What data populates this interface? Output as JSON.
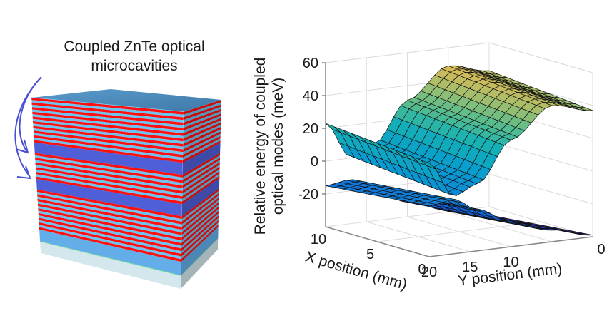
{
  "schematic": {
    "label_line1": "Coupled ZnTe optical",
    "label_line2": "microcavities",
    "colors": {
      "arrow": "#4a4fd6",
      "top_face": "#4a86b8",
      "dbr_light": "#6ec3f0",
      "dbr_red": "#ff1010",
      "cavity": "#4f5fd8",
      "buffer": "#63aee8",
      "substrate": "#d4e7ec",
      "interface": "#6ee08a"
    },
    "stack_from_top": [
      {
        "type": "dbr",
        "pairs": 9
      },
      {
        "type": "cavity"
      },
      {
        "type": "dbr",
        "pairs": 5
      },
      {
        "type": "cavity"
      },
      {
        "type": "dbr",
        "pairs": 8
      },
      {
        "type": "buffer"
      },
      {
        "type": "substrate"
      }
    ]
  },
  "chart_data": {
    "type": "surface3d",
    "title": "",
    "zlabel_line1": "Relative energy of coupled",
    "zlabel_line2": "optical modes (meV)",
    "xlabel": "X position (mm)",
    "ylabel": "Y position (mm)",
    "xlim": [
      0,
      10
    ],
    "ylim": [
      0,
      20
    ],
    "zlim": [
      -40,
      60
    ],
    "x_ticks": [
      {
        "v": 10,
        "label": "10"
      },
      {
        "v": 5,
        "label": "5"
      },
      {
        "v": 0,
        "label": "0"
      }
    ],
    "y_ticks": [
      {
        "v": 20,
        "label": "20"
      },
      {
        "v": 15,
        "label": "15"
      },
      {
        "v": 10,
        "label": "10"
      },
      {
        "v": 0,
        "label": "0"
      }
    ],
    "z_ticks": [
      {
        "v": 60,
        "label": "60"
      },
      {
        "v": 40,
        "label": "40"
      },
      {
        "v": 20,
        "label": "20"
      },
      {
        "v": 0,
        "label": "0"
      },
      {
        "v": -20,
        "label": "-20"
      }
    ],
    "grid": true,
    "colormap": "parula",
    "series": [
      {
        "name": "upper mode",
        "description": "saddle-like: ~20 meV at X=10,Y=20 corner, minimum ~ -5 meV near Y≈15, rising to ~45 meV at Y≈5, ~40 meV at Y=0",
        "y_profile": [
          {
            "y": 0,
            "z": 40
          },
          {
            "y": 5,
            "z": 46
          },
          {
            "y": 10,
            "z": 28
          },
          {
            "y": 14,
            "z": 4
          },
          {
            "y": 17,
            "z": -2
          },
          {
            "y": 20,
            "z": 20
          }
        ],
        "x_tilt": 3
      },
      {
        "name": "lower mode",
        "description": "~ -12 meV at Y=20, peak ~ -10 near Y≈17, falling to ~ -40 meV toward Y=0",
        "y_profile": [
          {
            "y": 0,
            "z": -42
          },
          {
            "y": 5,
            "z": -36
          },
          {
            "y": 10,
            "z": -28
          },
          {
            "y": 14,
            "z": -18
          },
          {
            "y": 17,
            "z": -10
          },
          {
            "y": 20,
            "z": -12
          }
        ],
        "x_tilt": -3
      }
    ]
  }
}
